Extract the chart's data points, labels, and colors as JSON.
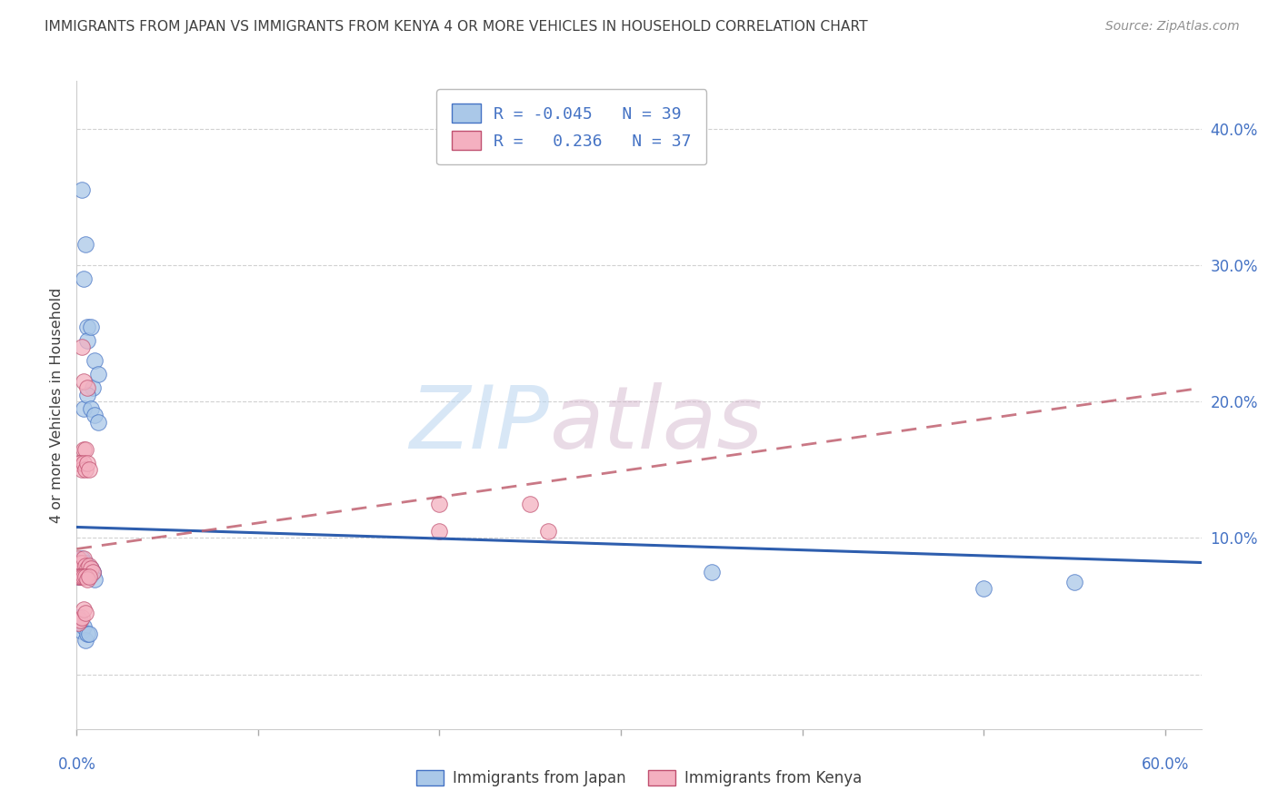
{
  "title": "IMMIGRANTS FROM JAPAN VS IMMIGRANTS FROM KENYA 4 OR MORE VEHICLES IN HOUSEHOLD CORRELATION CHART",
  "source": "Source: ZipAtlas.com",
  "ylabel": "4 or more Vehicles in Household",
  "xlim": [
    0.0,
    0.62
  ],
  "ylim": [
    -0.04,
    0.435
  ],
  "ytick_vals": [
    0.0,
    0.1,
    0.2,
    0.3,
    0.4
  ],
  "ytick_labels": [
    "",
    "10.0%",
    "20.0%",
    "30.0%",
    "40.0%"
  ],
  "japan_color": "#aac8e8",
  "japan_edge_color": "#4472c4",
  "kenya_color": "#f4b0c0",
  "kenya_edge_color": "#c05070",
  "japan_line_color": "#2255aa",
  "kenya_line_color": "#c06070",
  "legend_text_color": "#4472c4",
  "axis_label_color": "#4472c4",
  "title_color": "#404040",
  "source_color": "#909090",
  "grid_color": "#cccccc",
  "japan_R": -0.045,
  "japan_N": 39,
  "kenya_R": 0.236,
  "kenya_N": 37,
  "watermark_zip": "ZIP",
  "watermark_atlas": "atlas",
  "japan_points_x": [
    0.003,
    0.005,
    0.004,
    0.006,
    0.006,
    0.008,
    0.009,
    0.01,
    0.012,
    0.004,
    0.006,
    0.008,
    0.01,
    0.012,
    0.003,
    0.005,
    0.006,
    0.008,
    0.009,
    0.001,
    0.002,
    0.003,
    0.004,
    0.005,
    0.006,
    0.007,
    0.008,
    0.009,
    0.01,
    0.001,
    0.002,
    0.003,
    0.004,
    0.005,
    0.006,
    0.007,
    0.35,
    0.5,
    0.55
  ],
  "japan_points_y": [
    0.355,
    0.315,
    0.29,
    0.255,
    0.245,
    0.255,
    0.21,
    0.23,
    0.22,
    0.195,
    0.205,
    0.195,
    0.19,
    0.185,
    0.085,
    0.082,
    0.08,
    0.078,
    0.075,
    0.072,
    0.072,
    0.075,
    0.075,
    0.078,
    0.075,
    0.073,
    0.073,
    0.075,
    0.07,
    0.042,
    0.038,
    0.032,
    0.035,
    0.025,
    0.03,
    0.03,
    0.075,
    0.063,
    0.068
  ],
  "kenya_points_x": [
    0.001,
    0.002,
    0.003,
    0.004,
    0.005,
    0.006,
    0.007,
    0.008,
    0.009,
    0.001,
    0.002,
    0.003,
    0.004,
    0.005,
    0.006,
    0.007,
    0.003,
    0.004,
    0.004,
    0.005,
    0.006,
    0.001,
    0.002,
    0.003,
    0.004,
    0.005,
    0.006,
    0.007,
    0.001,
    0.002,
    0.003,
    0.004,
    0.005,
    0.2,
    0.2,
    0.25,
    0.26
  ],
  "kenya_points_y": [
    0.085,
    0.082,
    0.082,
    0.085,
    0.08,
    0.078,
    0.08,
    0.078,
    0.075,
    0.072,
    0.072,
    0.072,
    0.072,
    0.072,
    0.07,
    0.072,
    0.24,
    0.215,
    0.165,
    0.165,
    0.21,
    0.155,
    0.155,
    0.15,
    0.155,
    0.15,
    0.155,
    0.15,
    0.038,
    0.04,
    0.042,
    0.048,
    0.045,
    0.125,
    0.105,
    0.125,
    0.105
  ],
  "japan_line_x0": 0.0,
  "japan_line_y0": 0.108,
  "japan_line_x1": 0.62,
  "japan_line_y1": 0.082,
  "kenya_line_x0": 0.0,
  "kenya_line_y0": 0.092,
  "kenya_line_x1": 0.62,
  "kenya_line_y1": 0.21
}
